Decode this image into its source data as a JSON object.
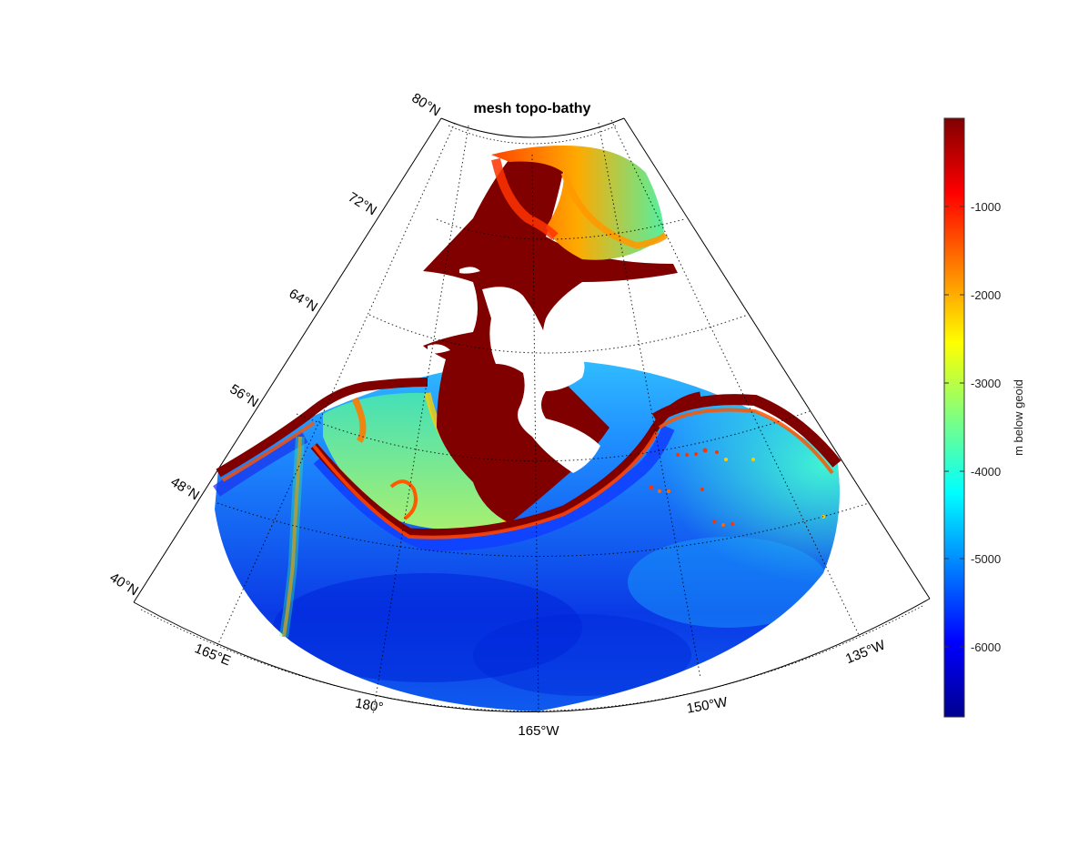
{
  "title": "mesh topo-bathy",
  "latitude_labels": [
    "80°N",
    "72°N",
    "64°N",
    "56°N",
    "48°N",
    "40°N"
  ],
  "longitude_labels": [
    "165°E",
    "180°",
    "165°W",
    "150°W",
    "135°W"
  ],
  "colorbar": {
    "label": "m below geoid",
    "ticks": [
      "-1000",
      "-2000",
      "-3000",
      "-4000",
      "-5000",
      "-6000"
    ],
    "colormap": "jet"
  },
  "colors": {
    "land": "#ffffff",
    "shallow_shelf": "#800000",
    "deep_ocean": "#0033cc"
  }
}
